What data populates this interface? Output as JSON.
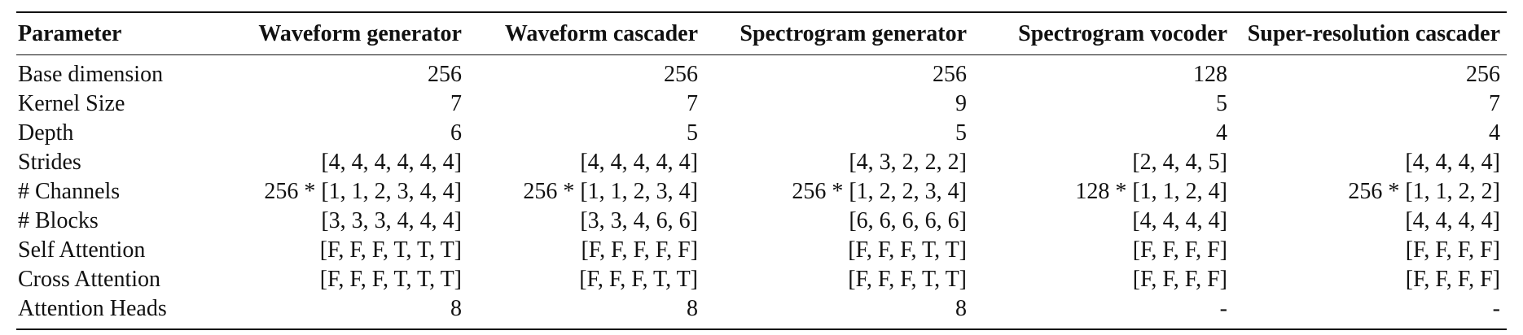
{
  "table": {
    "headers": [
      "Parameter",
      "Waveform generator",
      "Waveform cascader",
      "Spectrogram generator",
      "Spectrogram vocoder",
      "Super-resolution cascader"
    ],
    "rows": [
      [
        "Base dimension",
        "256",
        "256",
        "256",
        "128",
        "256"
      ],
      [
        "Kernel Size",
        "7",
        "7",
        "9",
        "5",
        "7"
      ],
      [
        "Depth",
        "6",
        "5",
        "5",
        "4",
        "4"
      ],
      [
        "Strides",
        "[4, 4, 4, 4, 4, 4]",
        "[4, 4, 4, 4, 4]",
        "[4, 3, 2, 2, 2]",
        "[2, 4, 4, 5]",
        "[4, 4, 4, 4]"
      ],
      [
        "# Channels",
        "256 * [1, 1, 2, 3, 4, 4]",
        "256 * [1, 1, 2, 3, 4]",
        "256 * [1, 2, 2, 3, 4]",
        "128 * [1, 1, 2, 4]",
        "256 * [1, 1, 2, 2]"
      ],
      [
        "# Blocks",
        "[3, 3, 3, 4, 4, 4]",
        "[3, 3, 4, 6, 6]",
        "[6, 6, 6, 6, 6]",
        "[4, 4, 4, 4]",
        "[4, 4, 4, 4]"
      ],
      [
        "Self Attention",
        "[F, F, F, T, T, T]",
        "[F, F, F, F, F]",
        "[F, F, F, T, T]",
        "[F, F, F, F]",
        "[F, F, F, F]"
      ],
      [
        "Cross Attention",
        "[F, F, F, T, T, T]",
        "[F, F, F, T, T]",
        "[F, F, F, T, T]",
        "[F, F, F, F]",
        "[F, F, F, F]"
      ],
      [
        "Attention Heads",
        "8",
        "8",
        "8",
        "-",
        "-"
      ]
    ]
  }
}
